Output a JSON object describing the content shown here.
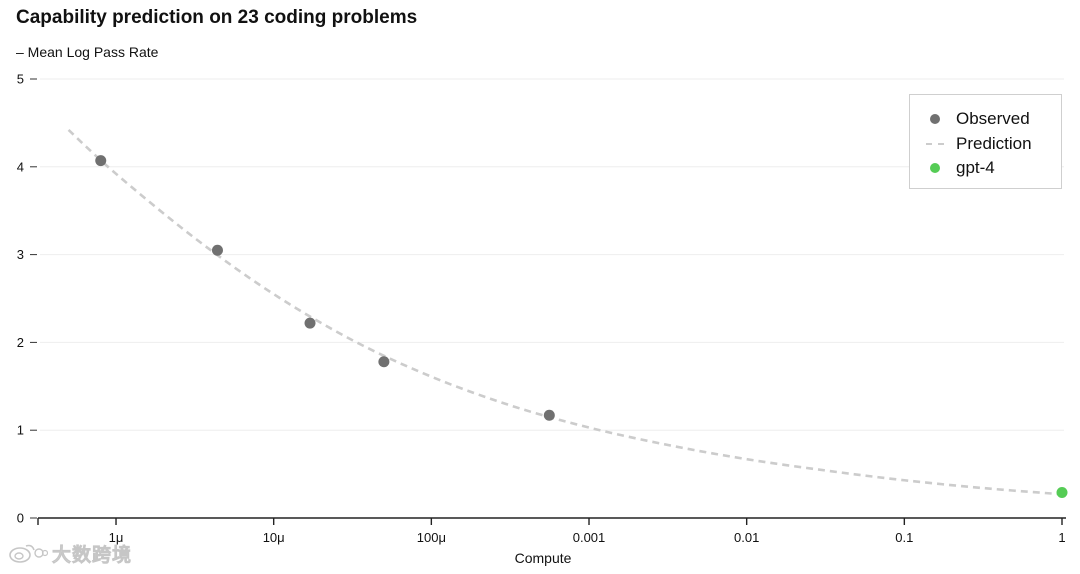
{
  "chart_data": {
    "type": "scatter",
    "title": "Capability prediction on 23 coding problems",
    "ylabel": "– Mean Log Pass Rate",
    "xlabel": "Compute",
    "x_scale": "log",
    "xlim": [
      3.2e-07,
      1
    ],
    "ylim": [
      0,
      5
    ],
    "grid": "horizontal",
    "legend_position": "top-right",
    "x_ticks": [
      {
        "value": 1e-06,
        "label": "1μ"
      },
      {
        "value": 1e-05,
        "label": "10μ"
      },
      {
        "value": 0.0001,
        "label": "100μ"
      },
      {
        "value": 0.001,
        "label": "0.001"
      },
      {
        "value": 0.01,
        "label": "0.01"
      },
      {
        "value": 0.1,
        "label": "0.1"
      },
      {
        "value": 1,
        "label": "1"
      }
    ],
    "y_ticks": [
      {
        "value": 0,
        "label": "0"
      },
      {
        "value": 1,
        "label": "1"
      },
      {
        "value": 2,
        "label": "2"
      },
      {
        "value": 3,
        "label": "3"
      },
      {
        "value": 4,
        "label": "4"
      },
      {
        "value": 5,
        "label": "5"
      }
    ],
    "series": [
      {
        "name": "Observed",
        "style": "marker",
        "color": "#707070",
        "points": [
          {
            "x": 8e-07,
            "y": 4.07
          },
          {
            "x": 4.4e-06,
            "y": 3.05
          },
          {
            "x": 1.7e-05,
            "y": 2.22
          },
          {
            "x": 5e-05,
            "y": 1.78
          },
          {
            "x": 0.00056,
            "y": 1.17
          }
        ]
      },
      {
        "name": "Prediction",
        "style": "dashed-line",
        "color": "#cccccc",
        "points": [
          {
            "x": 5e-07,
            "y": 4.42
          },
          {
            "x": 1e-06,
            "y": 3.92
          },
          {
            "x": 3.2e-06,
            "y": 3.18
          },
          {
            "x": 1e-05,
            "y": 2.55
          },
          {
            "x": 3.2e-05,
            "y": 2.02
          },
          {
            "x": 0.0001,
            "y": 1.61
          },
          {
            "x": 0.00032,
            "y": 1.28
          },
          {
            "x": 0.001,
            "y": 1.03
          },
          {
            "x": 0.0032,
            "y": 0.83
          },
          {
            "x": 0.01,
            "y": 0.67
          },
          {
            "x": 0.032,
            "y": 0.54
          },
          {
            "x": 0.1,
            "y": 0.43
          },
          {
            "x": 0.32,
            "y": 0.34
          },
          {
            "x": 1.0,
            "y": 0.27
          }
        ]
      },
      {
        "name": "gpt-4",
        "style": "marker",
        "color": "#55cc55",
        "points": [
          {
            "x": 1.0,
            "y": 0.29
          }
        ]
      }
    ]
  },
  "watermark": {
    "text": "大数跨境",
    "icon": "weibo-logo-icon"
  }
}
